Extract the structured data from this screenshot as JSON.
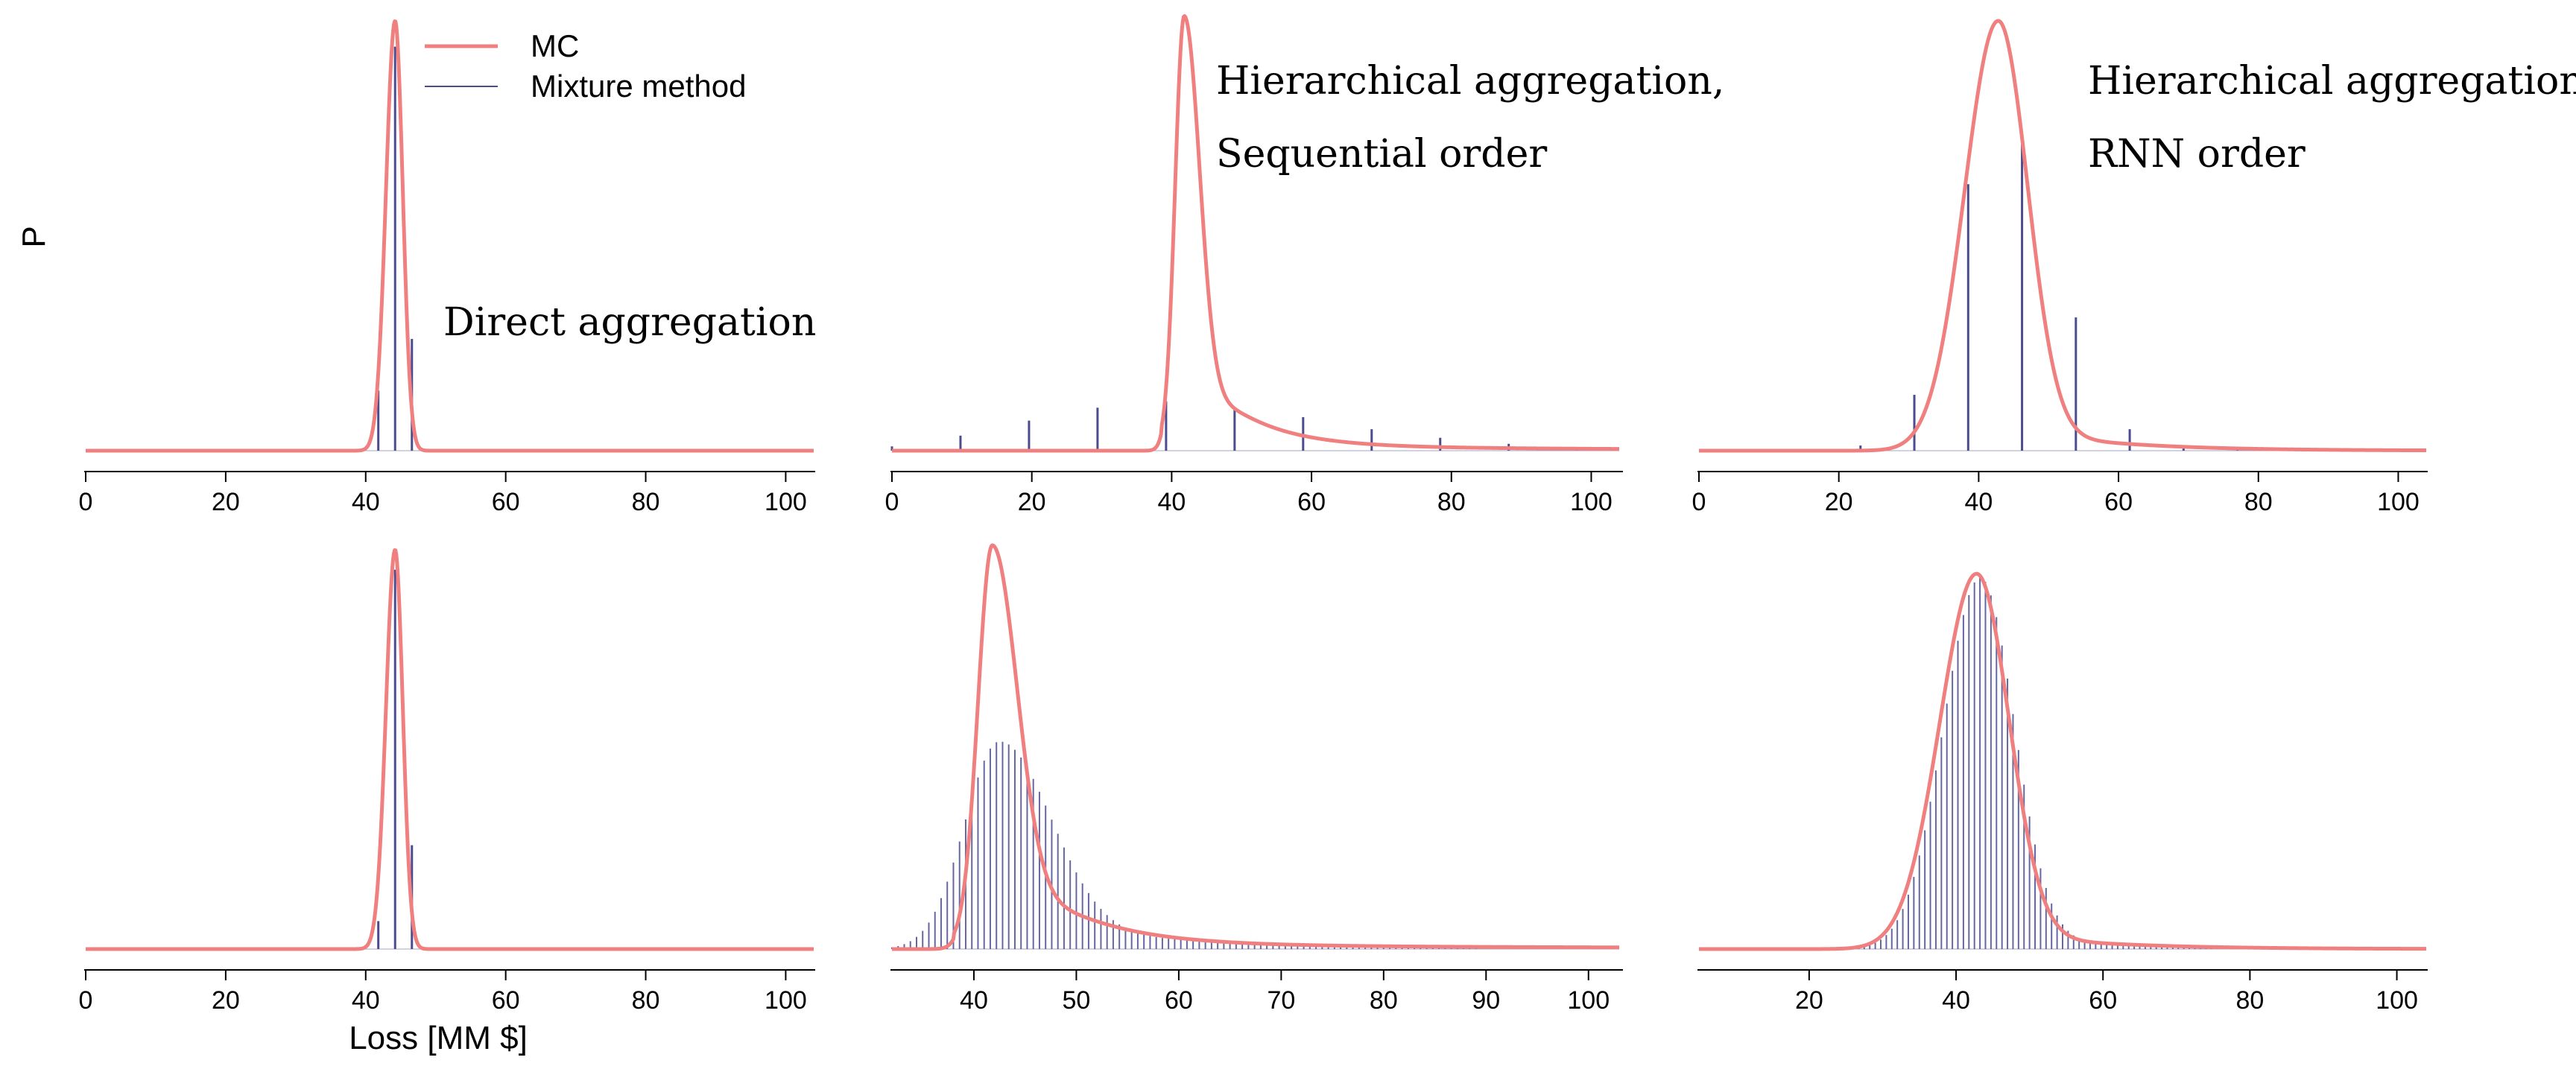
{
  "figure": {
    "ylabel": "P",
    "xlabel": "Loss [MM $]",
    "legend": {
      "placement": "top of first panel",
      "items": [
        "MC",
        "Mixture method"
      ]
    },
    "colors": {
      "mc": "#f08080",
      "mixture": "#4b4b8f",
      "axis": "#000000"
    }
  },
  "chart_data": [
    {
      "type": "line+stem",
      "panel": "top-left",
      "annotation": [
        "Direct aggregation"
      ],
      "xlim": [
        0,
        104
      ],
      "ylim": [
        0,
        1
      ],
      "xticks": [
        0,
        20,
        40,
        60,
        80,
        100
      ],
      "xticklabels": [
        "0",
        "20",
        "40",
        "60",
        "80",
        "100"
      ],
      "mc": {
        "kind": "gauss",
        "mu": 44.2,
        "sigmaLeft": 1.3,
        "sigmaRight": 1.1,
        "peak": 1.0
      },
      "mixture": {
        "kind": "points",
        "x": [
          41.8,
          44.2,
          46.6
        ],
        "y": [
          0.14,
          0.94,
          0.26
        ]
      }
    },
    {
      "type": "line+stem",
      "panel": "top-middle",
      "annotation": [
        "Hierarchical aggregation,",
        "Sequential order"
      ],
      "xlim": [
        0,
        104
      ],
      "ylim": [
        0,
        1
      ],
      "xticks": [
        0,
        20,
        40,
        60,
        80,
        100
      ],
      "xticklabels": [
        "0",
        "20",
        "40",
        "60",
        "80",
        "100"
      ],
      "mc": {
        "kind": "tailed",
        "mu": 41.8,
        "sigmaLeft": 1.3,
        "sigmaRight": 2.2,
        "peak": 1.0,
        "tailAmp": 0.22,
        "tailDecay": 8,
        "baseline": 0.012,
        "onset": 38.5
      },
      "mixture": {
        "kind": "points",
        "x": [
          0,
          9.8,
          19.6,
          29.4,
          39.2,
          49,
          58.8,
          68.6,
          78.4,
          88.2,
          98
        ],
        "y": [
          0.01,
          0.035,
          0.07,
          0.1,
          0.115,
          0.1,
          0.078,
          0.05,
          0.03,
          0.016,
          0.006
        ]
      }
    },
    {
      "type": "line+stem",
      "panel": "top-right",
      "annotation": [
        "Hierarchical aggregation",
        "RNN order"
      ],
      "xlim": [
        0,
        104
      ],
      "ylim": [
        0,
        1
      ],
      "xticks": [
        0,
        20,
        40,
        60,
        80,
        100
      ],
      "xticklabels": [
        "0",
        "20",
        "40",
        "60",
        "80",
        "100"
      ],
      "mc": {
        "kind": "tailed",
        "mu": 42.8,
        "sigmaLeft": 4.8,
        "sigmaRight": 4.2,
        "peak": 1.0,
        "tailAmp": 0.06,
        "tailDecay": 14,
        "baseline": 0.0
      },
      "mixture": {
        "kind": "points",
        "x": [
          7.7,
          15.4,
          23.1,
          30.8,
          38.5,
          46.2,
          53.9,
          61.6,
          69.3,
          77,
          84.7,
          92.4,
          100.1
        ],
        "y": [
          0.002,
          0.004,
          0.012,
          0.13,
          0.62,
          0.72,
          0.31,
          0.05,
          0.012,
          0.005,
          0.003,
          0.002,
          0.001
        ]
      }
    },
    {
      "type": "line+stem",
      "panel": "bottom-left",
      "annotation": [],
      "xlim": [
        0,
        104
      ],
      "ylim": [
        0,
        1
      ],
      "xticks": [
        0,
        20,
        40,
        60,
        80,
        100
      ],
      "xticklabels": [
        "0",
        "20",
        "40",
        "60",
        "80",
        "100"
      ],
      "mc": {
        "kind": "gauss",
        "mu": 44.2,
        "sigmaLeft": 1.3,
        "sigmaRight": 1.1,
        "peak": 1.0
      },
      "mixture": {
        "kind": "points",
        "x": [
          41.8,
          44.2,
          46.6
        ],
        "y": [
          0.07,
          0.95,
          0.26
        ]
      }
    },
    {
      "type": "line+stem",
      "panel": "bottom-middle",
      "annotation": [],
      "xlim": [
        32,
        103
      ],
      "ylim": [
        0,
        1
      ],
      "xticks": [
        40,
        50,
        60,
        70,
        80,
        90,
        100
      ],
      "xticklabels": [
        "40",
        "50",
        "60",
        "70",
        "80",
        "90",
        "100"
      ],
      "mc": {
        "kind": "tailed",
        "mu": 41.8,
        "sigmaLeft": 1.4,
        "sigmaRight": 2.4,
        "peak": 1.0,
        "tailAmp": 0.26,
        "tailDecay": 7,
        "baseline": 0.012,
        "onset": 38
      },
      "mixture": {
        "kind": "series",
        "start": 32,
        "end": 103,
        "step": 0.6,
        "mu": 42.5,
        "sigmaLeft": 3.4,
        "sigmaRight": 5.0,
        "peak": 0.52,
        "tailAmp": 0.1,
        "tailDecay": 12
      }
    },
    {
      "type": "line+stem",
      "panel": "bottom-right",
      "annotation": [],
      "xlim": [
        5,
        104
      ],
      "ylim": [
        0,
        1
      ],
      "xticks": [
        20,
        40,
        60,
        80,
        100
      ],
      "xticklabels": [
        "20",
        "40",
        "60",
        "80",
        "100"
      ],
      "mc": {
        "kind": "tailed",
        "mu": 42.8,
        "sigmaLeft": 5.0,
        "sigmaRight": 4.4,
        "peak": 0.94,
        "tailAmp": 0.05,
        "tailDecay": 14,
        "baseline": 0.0
      },
      "mixture": {
        "kind": "series",
        "start": 5,
        "end": 104,
        "step": 0.75,
        "mu": 43.3,
        "sigmaLeft": 5.0,
        "sigmaRight": 4.6,
        "peak": 0.93,
        "tailAmp": 0.04,
        "tailDecay": 14
      }
    }
  ]
}
